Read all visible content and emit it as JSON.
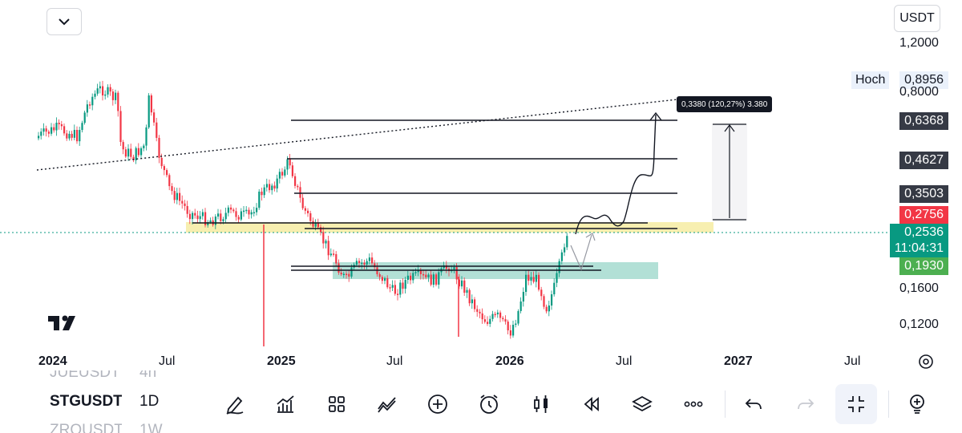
{
  "header": {
    "currency_label": "USDT",
    "collapse_icon": "chevron-down-icon"
  },
  "price_axis": {
    "ticks": [
      "1,2000",
      "0,8000",
      "0,1600",
      "0,1200"
    ],
    "high_label": "Hoch",
    "high_value": "0,8956",
    "levels": [
      {
        "value": "0,6368",
        "bg": "#363a45",
        "fg": "#ffffff"
      },
      {
        "value": "0,4627",
        "bg": "#363a45",
        "fg": "#ffffff"
      },
      {
        "value": "0,3503",
        "bg": "#363a45",
        "fg": "#ffffff"
      },
      {
        "value": "0,2756",
        "bg": "#f23645",
        "fg": "#ffffff"
      },
      {
        "value": "0,1930",
        "bg": "#4caf50",
        "fg": "#ffffff"
      }
    ],
    "last_price": "0,2536",
    "countdown": "11:04:31",
    "last_price_color": "#089981"
  },
  "time_axis": {
    "ticks": [
      "2024",
      "Jul",
      "2025",
      "Jul",
      "2026",
      "Jul",
      "2027",
      "Jul"
    ],
    "bold": [
      true,
      false,
      true,
      false,
      true,
      false,
      true,
      false
    ]
  },
  "measure": {
    "label": "0,3380 (120,27%) 3.380"
  },
  "colors": {
    "up": "#089981",
    "down": "#f23645",
    "zone_yellow": "#f7efb0",
    "zone_teal": "#b2e0d6"
  },
  "symbols": [
    {
      "name": "JUEUSDT",
      "interval": "4h"
    },
    {
      "name": "STGUSDT",
      "interval": "1D"
    },
    {
      "name": "ZROUSDT",
      "interval": "1W"
    }
  ],
  "toolbar": {
    "icons": [
      "pencil-draw-icon",
      "indicators-icon",
      "layout-grid-icon",
      "trend-tools-icon",
      "add-icon",
      "alert-clock-icon",
      "candle-chart-icon",
      "replay-icon",
      "layers-icon",
      "more-icon",
      "undo-icon",
      "redo-icon",
      "fullscreen-exit-icon",
      "idea-lightbulb-icon"
    ]
  },
  "logo": "tradingview-logo",
  "settings_icon": "settings-gear-icon"
}
